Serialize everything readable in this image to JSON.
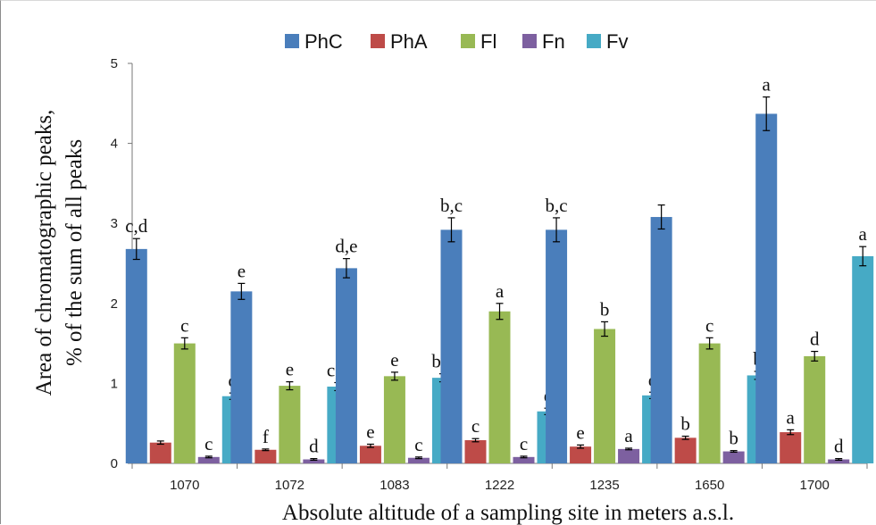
{
  "chart_data": {
    "type": "bar",
    "categories": [
      "1070",
      "1072",
      "1083",
      "1222",
      "1235",
      "1650",
      "1700"
    ],
    "xlabel": "Absolute altitude of a sampling site in meters a.s.l.",
    "ylabel": [
      "Area of chromatographic peaks,",
      "% of the sum of all peaks"
    ],
    "ylim": [
      0,
      5
    ],
    "yticks": [
      "0",
      "1",
      "2",
      "3",
      "4",
      "5"
    ],
    "grid": false,
    "legend_position": "top",
    "series": [
      {
        "name": "PhC",
        "color": "#4a7ebb",
        "values": [
          2.68,
          2.15,
          2.44,
          2.92,
          2.92,
          3.08,
          4.37
        ],
        "errors": [
          0.13,
          0.1,
          0.12,
          0.15,
          0.15,
          0.15,
          0.21
        ],
        "labels": [
          "c,d",
          "e",
          "d,e",
          "b,c",
          "b,c",
          "",
          "a"
        ]
      },
      {
        "name": "PhA",
        "color": "#be4b48",
        "values": [
          0.26,
          0.17,
          0.22,
          0.29,
          0.21,
          0.32,
          0.39
        ],
        "errors": [
          0.02,
          0.01,
          0.02,
          0.02,
          0.02,
          0.02,
          0.03
        ],
        "labels": [
          "",
          "f",
          "e",
          "c",
          "e",
          "b",
          "a"
        ]
      },
      {
        "name": "Fl",
        "color": "#98b954",
        "values": [
          1.5,
          0.97,
          1.09,
          1.9,
          1.68,
          1.5,
          1.34
        ],
        "errors": [
          0.07,
          0.05,
          0.05,
          0.1,
          0.09,
          0.07,
          0.06
        ],
        "labels": [
          "c",
          "e",
          "e",
          "a",
          "b",
          "c",
          "d"
        ]
      },
      {
        "name": "Fn",
        "color": "#7d60a0",
        "values": [
          0.08,
          0.05,
          0.07,
          0.08,
          0.18,
          0.15,
          0.05
        ],
        "errors": [
          0.01,
          0.01,
          0.01,
          0.01,
          0.01,
          0.01,
          0.01
        ],
        "labels": [
          "c",
          "d",
          "c",
          "c",
          "a",
          "b",
          "d"
        ]
      },
      {
        "name": "Fv",
        "color": "#46aac5",
        "values": [
          0.84,
          0.96,
          1.07,
          0.65,
          0.85,
          1.1,
          2.59
        ],
        "errors": [
          0.04,
          0.05,
          0.05,
          0.04,
          0.04,
          0.05,
          0.12
        ],
        "labels": [
          "d",
          "c,d",
          "b,c",
          "e",
          "d",
          "b",
          "a"
        ]
      }
    ]
  }
}
